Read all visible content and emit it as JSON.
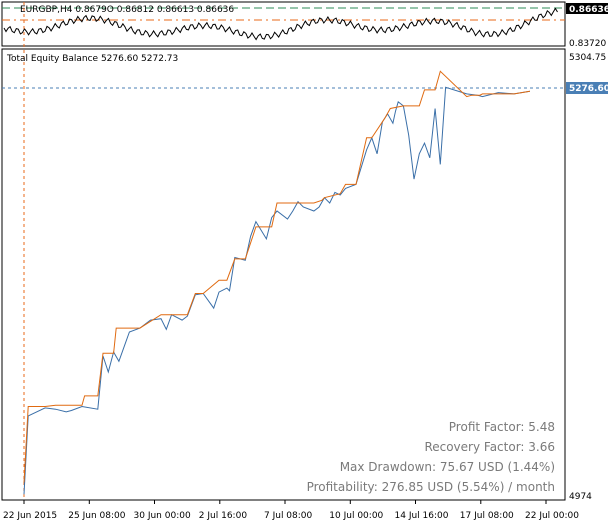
{
  "price_panel": {
    "symbol_line": "EURGBP,H4  0.8679O 0.86812 0.86613 0.86636",
    "current_price": "0.86636",
    "low_label": "0.83720",
    "colors": {
      "price": "#000000",
      "level_green": "#2e8b57",
      "level_red": "#e86a1a"
    }
  },
  "equity_panel": {
    "title": "Total Equity Balance 5276.60 5272.73",
    "y_top_label": "5304.75",
    "y_bottom_label": "4974",
    "current_tag": "5276.60",
    "colors": {
      "balance": "#e06a10",
      "equity": "#3a6fa8",
      "tag_bg": "#4a7fb5",
      "tag_text": "#ffffff"
    }
  },
  "x_axis_labels": [
    "22 Jun 2015",
    "25 Jun 08:00",
    "30 Jun 00:00",
    "2 Jul 16:00",
    "7 Jul 08:00",
    "10 Jul 00:00",
    "14 Jul 16:00",
    "17 Jul 08:00",
    "22 Jul 00:00"
  ],
  "stats": {
    "profit_factor": "Profit Factor: 5.48",
    "recovery_factor": "Recovery Factor: 3.66",
    "max_drawdown": "Max Drawdown: 75.67 USD (1.44%)",
    "profitability": "Profitability: 276.85 USD (5.54%) / month"
  },
  "chart_data": {
    "type": "line",
    "title": "Total Equity Balance",
    "ylim": [
      4974,
      5304.75
    ],
    "x_index_range": [
      0,
      100
    ],
    "series": [
      {
        "name": "Balance",
        "x": [
          0,
          0.8,
          4,
          6,
          11,
          11.5,
          14,
          15,
          17,
          17.5,
          22,
          26,
          31,
          32.5,
          34,
          37,
          38.5,
          40,
          42,
          44,
          47,
          48,
          52,
          55,
          56.5,
          57,
          60,
          61,
          63,
          65,
          66,
          68.5,
          69.5,
          72,
          75,
          76,
          78,
          79,
          84,
          85,
          86.5,
          87,
          93,
          96
        ],
        "y": [
          4985,
          5042,
          5042,
          5043,
          5043,
          5050,
          5050,
          5082,
          5082,
          5101,
          5101,
          5111,
          5111,
          5127,
          5127,
          5137,
          5137,
          5153,
          5153,
          5177,
          5177,
          5195,
          5195,
          5195,
          5197,
          5199,
          5202,
          5209,
          5209,
          5244,
          5244,
          5259,
          5266,
          5268,
          5268,
          5280,
          5280,
          5294,
          5275,
          5276,
          5276,
          5277,
          5277,
          5279
        ]
      },
      {
        "name": "Equity",
        "x": [
          0,
          0.8,
          4,
          6,
          8,
          9,
          11,
          14,
          15,
          16,
          17,
          18,
          20,
          22,
          24,
          26,
          27,
          28,
          30,
          31,
          32.5,
          34,
          36,
          37,
          38.5,
          39,
          40,
          42,
          43,
          44,
          46,
          47,
          48,
          50,
          51,
          52,
          53,
          55,
          56,
          57,
          58,
          59,
          60,
          61,
          63,
          65,
          66,
          67,
          68,
          69,
          70,
          70.5,
          71,
          72,
          73,
          74,
          75,
          76,
          77,
          78,
          79,
          80,
          84,
          86,
          87,
          90,
          93,
          96
        ],
        "y": [
          4976,
          5035,
          5041,
          5040,
          5038,
          5039,
          5042,
          5040,
          5080,
          5068,
          5083,
          5076,
          5098,
          5101,
          5107,
          5108,
          5100,
          5111,
          5107,
          5110,
          5126,
          5127,
          5116,
          5128,
          5131,
          5129,
          5154,
          5152,
          5170,
          5181,
          5168,
          5184,
          5189,
          5183,
          5189,
          5196,
          5192,
          5189,
          5192,
          5199,
          5195,
          5203,
          5201,
          5206,
          5209,
          5235,
          5244,
          5232,
          5256,
          5262,
          5255,
          5264,
          5271,
          5268,
          5246,
          5213,
          5232,
          5240,
          5229,
          5266,
          5224,
          5282,
          5277,
          5276,
          5275,
          5278,
          5277,
          5279
        ]
      }
    ]
  }
}
